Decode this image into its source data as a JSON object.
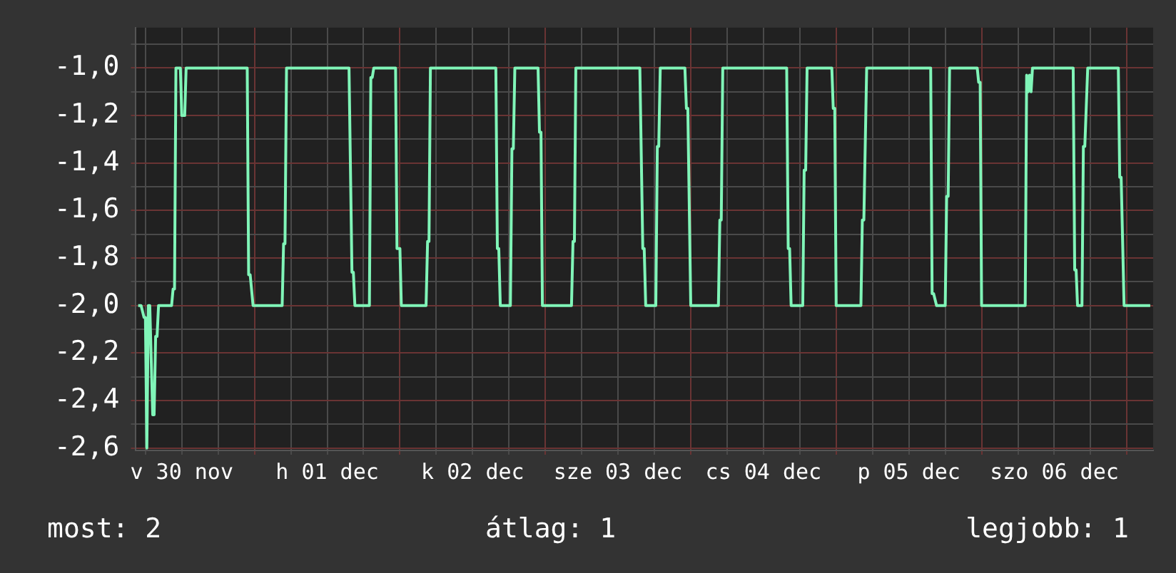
{
  "chart_data": {
    "type": "line",
    "grid": true,
    "legend": false,
    "x": [
      "--11-30T04:48",
      "--11-30T05:17",
      "--11-30T05:46",
      "--11-30T06:00",
      "--11-30T06:14",
      "--11-30T06:29",
      "--11-30T06:43",
      "--11-30T07:12",
      "--11-30T07:26",
      "--11-30T07:41",
      "--11-30T07:55",
      "--11-30T08:10",
      "--11-30T10:19",
      "--11-30T10:34",
      "--11-30T10:48",
      "--11-30T11:02",
      "--11-30T11:31",
      "--11-30T11:46",
      "--11-30T12:00",
      "--11-30T12:29",
      "--11-30T12:43",
      "--11-30T22:48",
      "--11-30T23:02",
      "--11-30T23:17",
      "--11-30T23:46",
      "--12-01T04:34",
      "--12-01T04:48",
      "--12-01T05:02",
      "--12-01T05:17",
      "--12-01T15:36",
      "--12-01T16:05",
      "--12-01T16:19",
      "--12-01T16:34",
      "--12-01T18:58",
      "--12-01T19:12",
      "--12-01T19:26",
      "--12-01T19:41",
      "--12-01T23:17",
      "--12-01T23:31",
      "--12-02T00:00",
      "--12-02T00:14",
      "--12-02T04:19",
      "--12-02T04:34",
      "--12-02T04:48",
      "--12-02T05:02",
      "--12-02T15:50",
      "--12-02T16:05",
      "--12-02T16:19",
      "--12-02T16:34",
      "--12-02T18:14",
      "--12-02T18:29",
      "--12-02T18:43",
      "--12-02T18:58",
      "--12-02T22:48",
      "--12-02T23:02",
      "--12-02T23:17",
      "--12-02T23:31",
      "--12-03T04:19",
      "--12-03T04:34",
      "--12-03T04:48",
      "--12-03T05:02",
      "--12-03T15:36",
      "--12-03T16:05",
      "--12-03T16:19",
      "--12-03T16:34",
      "--12-03T18:14",
      "--12-03T18:29",
      "--12-03T18:43",
      "--12-03T18:58",
      "--12-03T23:02",
      "--12-03T23:17",
      "--12-03T23:31",
      "--12-04T00:00",
      "--12-04T04:34",
      "--12-04T04:48",
      "--12-04T05:02",
      "--12-04T05:17",
      "--12-04T15:50",
      "--12-04T16:05",
      "--12-04T16:19",
      "--12-04T16:34",
      "--12-04T18:29",
      "--12-04T18:43",
      "--12-04T18:58",
      "--12-04T19:12",
      "--12-04T23:17",
      "--12-04T23:31",
      "--12-04T23:46",
      "--12-05T00:00",
      "--12-05T04:05",
      "--12-05T04:19",
      "--12-05T04:34",
      "--12-05T05:02",
      "--12-05T15:36",
      "--12-05T15:50",
      "--12-05T16:05",
      "--12-05T16:34",
      "--12-05T18:00",
      "--12-05T18:14",
      "--12-05T18:29",
      "--12-05T18:43",
      "--12-05T23:17",
      "--12-05T23:31",
      "--12-05T23:46",
      "--12-06T00:00",
      "--12-06T07:12",
      "--12-06T07:26",
      "--12-06T07:41",
      "--12-06T07:55",
      "--12-06T08:10",
      "--12-06T08:24",
      "--12-06T15:07",
      "--12-06T15:22",
      "--12-06T15:36",
      "--12-06T15:50",
      "--12-06T16:34",
      "--12-06T16:48",
      "--12-06T17:02",
      "--12-06T17:31",
      "--12-06T22:34",
      "--12-06T22:48",
      "--12-06T23:02",
      "--12-06T23:31",
      "--12-07T03:50"
    ],
    "series": [
      {
        "color": "#80f5b8",
        "values": [
          -2.0,
          -2.0,
          -2.05,
          -2.05,
          -2.6,
          -2.0,
          -2.0,
          -2.46,
          -2.46,
          -2.13,
          -2.13,
          -2.0,
          -2.0,
          -1.93,
          -1.93,
          -1.0,
          -1.0,
          -1.0,
          -1.2,
          -1.2,
          -1.0,
          -1.0,
          -1.87,
          -1.87,
          -2.0,
          -2.0,
          -1.74,
          -1.74,
          -1.0,
          -1.0,
          -1.86,
          -1.86,
          -2.0,
          -2.0,
          -1.04,
          -1.04,
          -1.0,
          -1.0,
          -1.76,
          -1.76,
          -2.0,
          -2.0,
          -1.73,
          -1.73,
          -1.0,
          -1.0,
          -1.76,
          -1.76,
          -2.0,
          -2.0,
          -1.34,
          -1.34,
          -1.0,
          -1.0,
          -1.27,
          -1.27,
          -2.0,
          -2.0,
          -1.73,
          -1.73,
          -1.0,
          -1.0,
          -1.76,
          -1.76,
          -2.0,
          -2.0,
          -1.33,
          -1.33,
          -1.0,
          -1.0,
          -1.17,
          -1.17,
          -2.0,
          -2.0,
          -1.64,
          -1.64,
          -1.0,
          -1.0,
          -1.76,
          -1.76,
          -2.0,
          -2.0,
          -1.43,
          -1.43,
          -1.0,
          -1.0,
          -1.17,
          -1.17,
          -2.0,
          -2.0,
          -1.64,
          -1.64,
          -1.0,
          -1.0,
          -1.95,
          -1.95,
          -2.0,
          -2.0,
          -1.54,
          -1.54,
          -1.0,
          -1.0,
          -1.06,
          -1.06,
          -2.0,
          -2.0,
          -1.03,
          -1.1,
          -1.03,
          -1.1,
          -1.0,
          -1.0,
          -1.85,
          -1.85,
          -2.0,
          -2.0,
          -1.33,
          -1.33,
          -1.0,
          -1.0,
          -1.46,
          -1.46,
          -2.0,
          -2.0
        ]
      }
    ],
    "xlim": [
      "--11-30T04:19",
      "--12-07T04:19"
    ],
    "xticks": [
      {
        "value": "--11-30T06:00",
        "label": null
      },
      {
        "value": "--11-30T12:00",
        "label": "v 30 nov"
      },
      {
        "value": "--11-30T18:00",
        "label": null
      },
      {
        "value": "--12-01T00:00",
        "label": null
      },
      {
        "value": "--12-01T06:00",
        "label": null
      },
      {
        "value": "--12-01T12:00",
        "label": "h 01 dec"
      },
      {
        "value": "--12-01T18:00",
        "label": null
      },
      {
        "value": "--12-02T00:00",
        "label": null
      },
      {
        "value": "--12-02T06:00",
        "label": null
      },
      {
        "value": "--12-02T12:00",
        "label": "k 02 dec"
      },
      {
        "value": "--12-02T18:00",
        "label": null
      },
      {
        "value": "--12-03T00:00",
        "label": null
      },
      {
        "value": "--12-03T06:00",
        "label": null
      },
      {
        "value": "--12-03T12:00",
        "label": "sze 03 dec"
      },
      {
        "value": "--12-03T18:00",
        "label": null
      },
      {
        "value": "--12-04T00:00",
        "label": null
      },
      {
        "value": "--12-04T06:00",
        "label": null
      },
      {
        "value": "--12-04T12:00",
        "label": "cs 04 dec"
      },
      {
        "value": "--12-04T18:00",
        "label": null
      },
      {
        "value": "--12-05T00:00",
        "label": null
      },
      {
        "value": "--12-05T06:00",
        "label": null
      },
      {
        "value": "--12-05T12:00",
        "label": "p 05 dec"
      },
      {
        "value": "--12-05T18:00",
        "label": null
      },
      {
        "value": "--12-06T00:00",
        "label": null
      },
      {
        "value": "--12-06T06:00",
        "label": null
      },
      {
        "value": "--12-06T12:00",
        "label": "szo 06 dec"
      },
      {
        "value": "--12-06T18:00",
        "label": null
      },
      {
        "value": "--12-07T00:00",
        "label": null
      }
    ],
    "ylim": [
      -2.61,
      -0.83
    ],
    "yticks": [
      {
        "value": -2.6,
        "label": "-2,6"
      },
      {
        "value": -2.5,
        "label": null
      },
      {
        "value": -2.4,
        "label": "-2,4"
      },
      {
        "value": -2.3,
        "label": null
      },
      {
        "value": -2.2,
        "label": "-2,2"
      },
      {
        "value": -2.1,
        "label": null
      },
      {
        "value": -2.0,
        "label": "-2,0"
      },
      {
        "value": -1.9,
        "label": null
      },
      {
        "value": -1.8,
        "label": "-1,8"
      },
      {
        "value": -1.7,
        "label": null
      },
      {
        "value": -1.6,
        "label": "-1,6"
      },
      {
        "value": -1.5,
        "label": null
      },
      {
        "value": -1.4,
        "label": "-1,4"
      },
      {
        "value": -1.3,
        "label": null
      },
      {
        "value": -1.2,
        "label": "-1,2"
      },
      {
        "value": -1.1,
        "label": null
      },
      {
        "value": -1.0,
        "label": "-1,0"
      },
      {
        "value": -0.9,
        "label": null
      }
    ],
    "annotations": [
      "most: 2",
      "átlag: 1",
      "legjobb: 1"
    ]
  }
}
